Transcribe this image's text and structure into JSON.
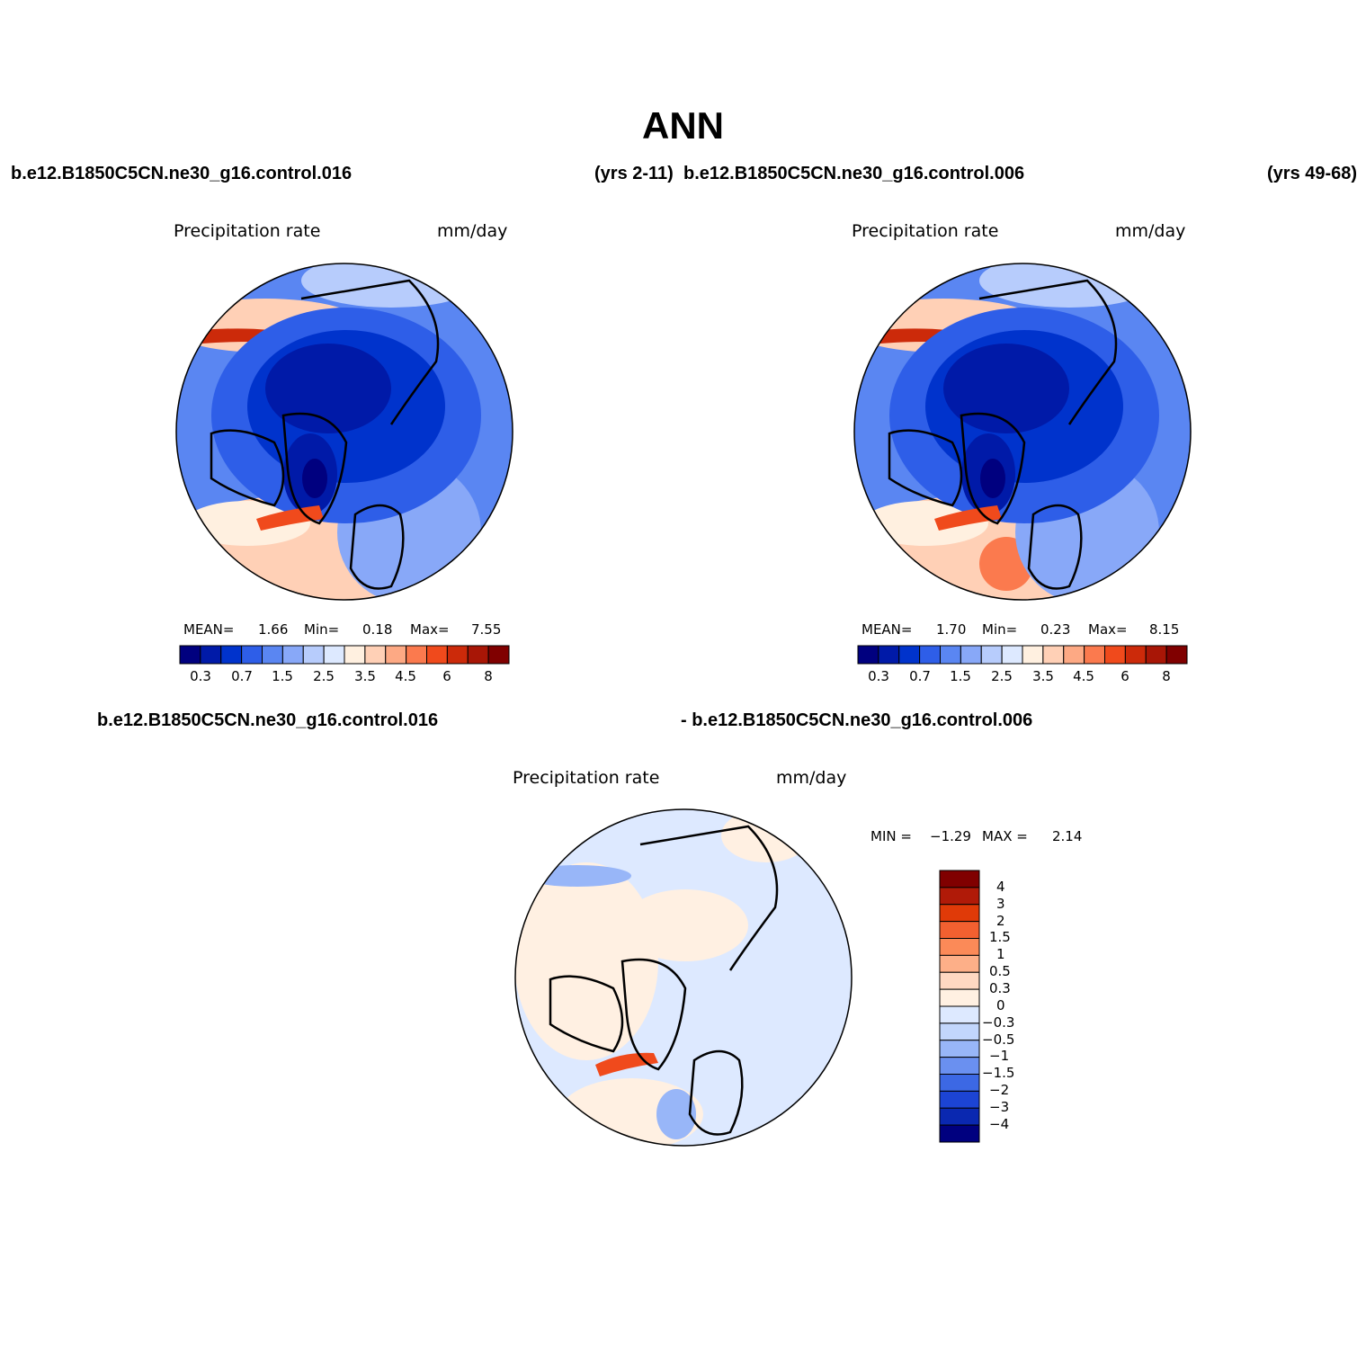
{
  "season": "ANN",
  "header": {
    "case_left": "b.e12.B1850C5CN.ne30_g16.control.016",
    "years_left": "(yrs 2-11)",
    "case_right": "b.e12.B1850C5CN.ne30_g16.control.006",
    "years_right": "(yrs 49-68)"
  },
  "panels": [
    {
      "variable": "Precipitation rate",
      "units": "mm/day",
      "stats": {
        "mean_label": "MEAN=",
        "mean": "1.66",
        "min_label": "Min=",
        "min": "0.18",
        "max_label": "Max=",
        "max": "7.55"
      }
    },
    {
      "variable": "Precipitation rate",
      "units": "mm/day",
      "stats": {
        "mean_label": "MEAN=",
        "mean": "1.70",
        "min_label": "Min=",
        "min": "0.23",
        "max_label": "Max=",
        "max": "8.15"
      }
    }
  ],
  "colorbar": {
    "colors": [
      "#00007f",
      "#001aa8",
      "#0033cc",
      "#2e5ee8",
      "#5a86f2",
      "#88a8f8",
      "#b7ccfc",
      "#dde9ff",
      "#fff0e0",
      "#ffd0b6",
      "#fda984",
      "#fb7a4e",
      "#f04a1c",
      "#cc2a0a",
      "#a81606",
      "#800000"
    ],
    "tick_labels": [
      "0.3",
      "0.7",
      "1.5",
      "2.5",
      "3.5",
      "4.5",
      "6",
      "8"
    ]
  },
  "diff": {
    "title_left": "b.e12.B1850C5CN.ne30_g16.control.016",
    "title_right": "- b.e12.B1850C5CN.ne30_g16.control.006",
    "variable": "Precipitation rate",
    "units": "mm/day",
    "stats": {
      "min_label": "MIN =",
      "min": "−1.29",
      "max_label": "MAX =",
      "max": "2.14"
    },
    "colors": [
      "#800000",
      "#b01a08",
      "#e03a08",
      "#f26030",
      "#fb8a58",
      "#fdaf88",
      "#ffd8c2",
      "#fff0e2",
      "#dde9ff",
      "#c2d6fc",
      "#98b6f8",
      "#6a90f0",
      "#3c68e4",
      "#1c44d4",
      "#0a28b0",
      "#00007f"
    ],
    "levels": [
      "4",
      "3",
      "2",
      "1.5",
      "1",
      "0.5",
      "0.3",
      "0",
      "−0.3",
      "−0.5",
      "−1",
      "−1.5",
      "−2",
      "−3",
      "−4"
    ]
  }
}
